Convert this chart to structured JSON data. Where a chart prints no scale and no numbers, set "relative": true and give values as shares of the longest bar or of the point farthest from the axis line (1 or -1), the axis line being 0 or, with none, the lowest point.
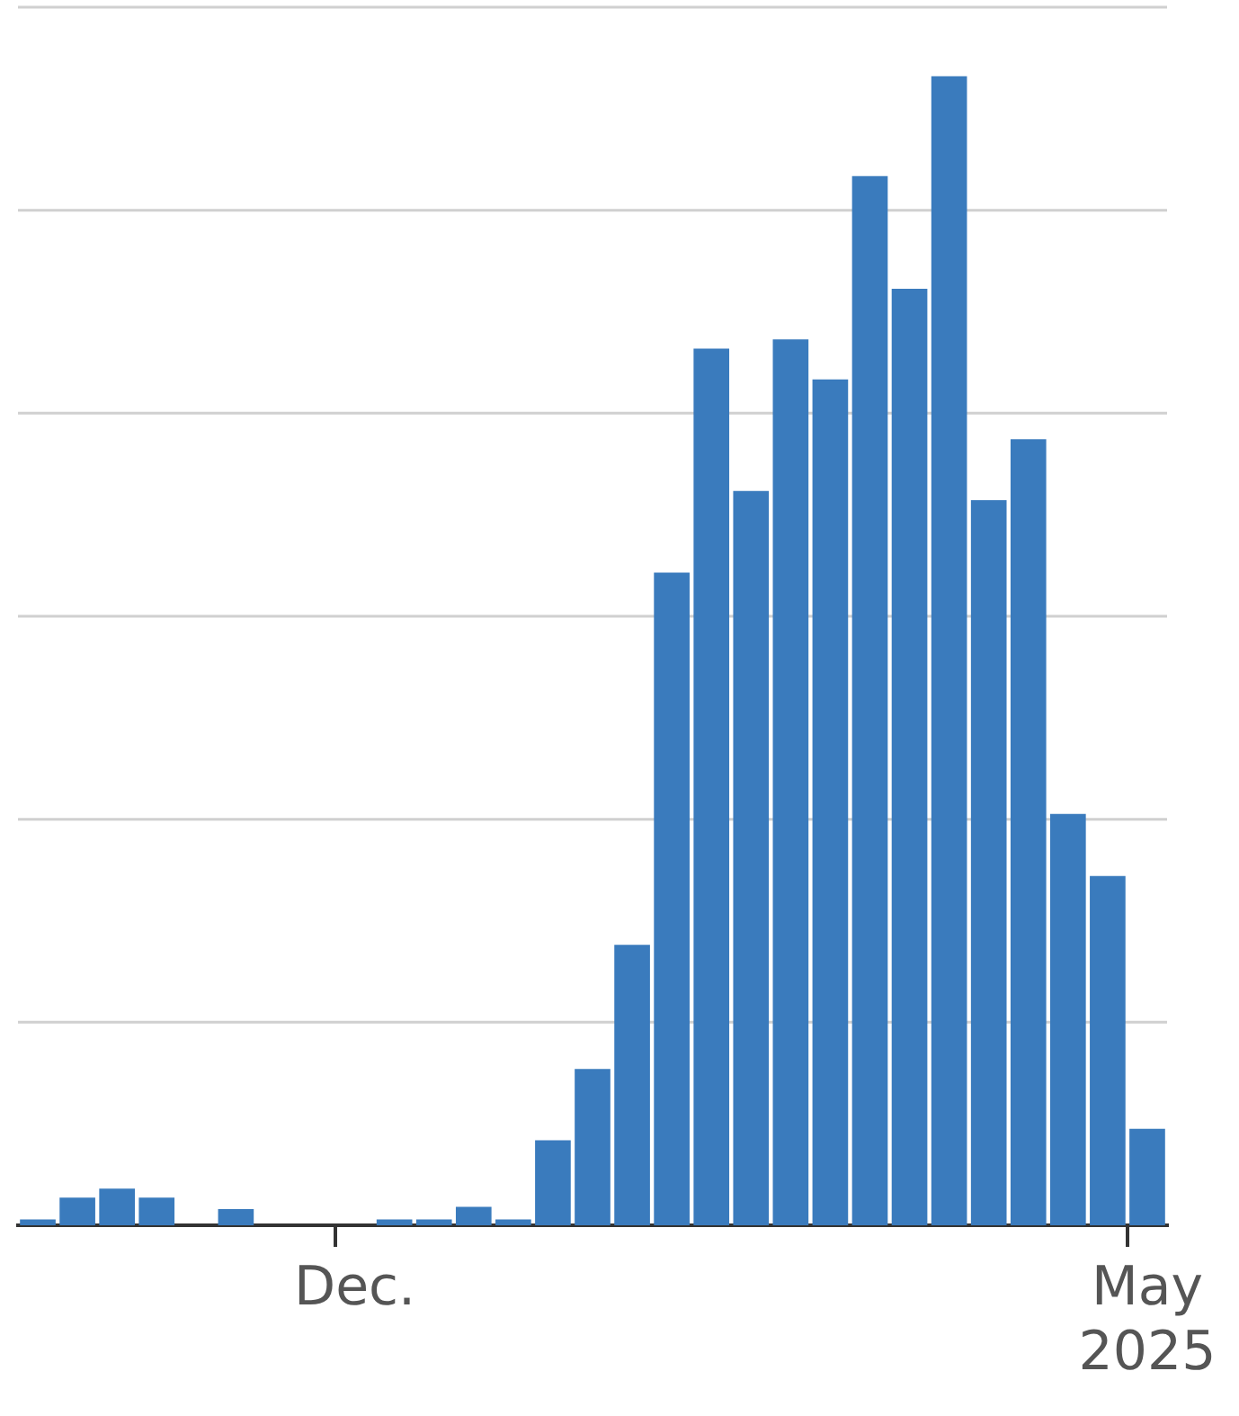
{
  "chart_data": {
    "type": "bar",
    "relative": true,
    "grid": "y",
    "color": "#3a7bbd",
    "categories": [
      null,
      null,
      null,
      null,
      null,
      null,
      null,
      null,
      "Dec.",
      null,
      null,
      null,
      null,
      null,
      null,
      null,
      null,
      null,
      null,
      null,
      null,
      null,
      null,
      null,
      null,
      null,
      null,
      null,
      "May 2025"
    ],
    "values": [
      0.005,
      0.024,
      0.032,
      0.024,
      0,
      0.014,
      0,
      0,
      0,
      0.005,
      0.005,
      0.016,
      0.005,
      0.074,
      0.136,
      0.244,
      0.568,
      0.763,
      0.639,
      0.771,
      0.736,
      0.913,
      0.815,
      1,
      0.631,
      0.684,
      0.358,
      0.304,
      0.084
    ]
  }
}
